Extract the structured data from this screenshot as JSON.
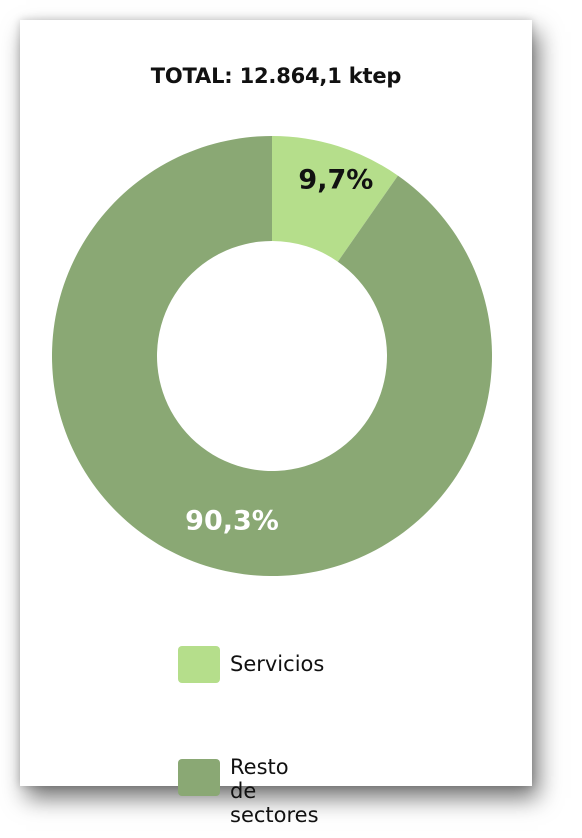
{
  "chart_data": {
    "type": "pie",
    "title": "TOTAL: 12.864,1 ktep",
    "series": [
      {
        "name": "Servicios",
        "value": 9.7,
        "label": "9,7%",
        "color": "#b5de8b",
        "label_color": "#111111"
      },
      {
        "name": "Resto\nde sectores",
        "value": 90.3,
        "label": "90,3%",
        "color": "#8aa874",
        "label_color": "#ffffff"
      }
    ],
    "donut": true,
    "legend_position": "bottom"
  }
}
